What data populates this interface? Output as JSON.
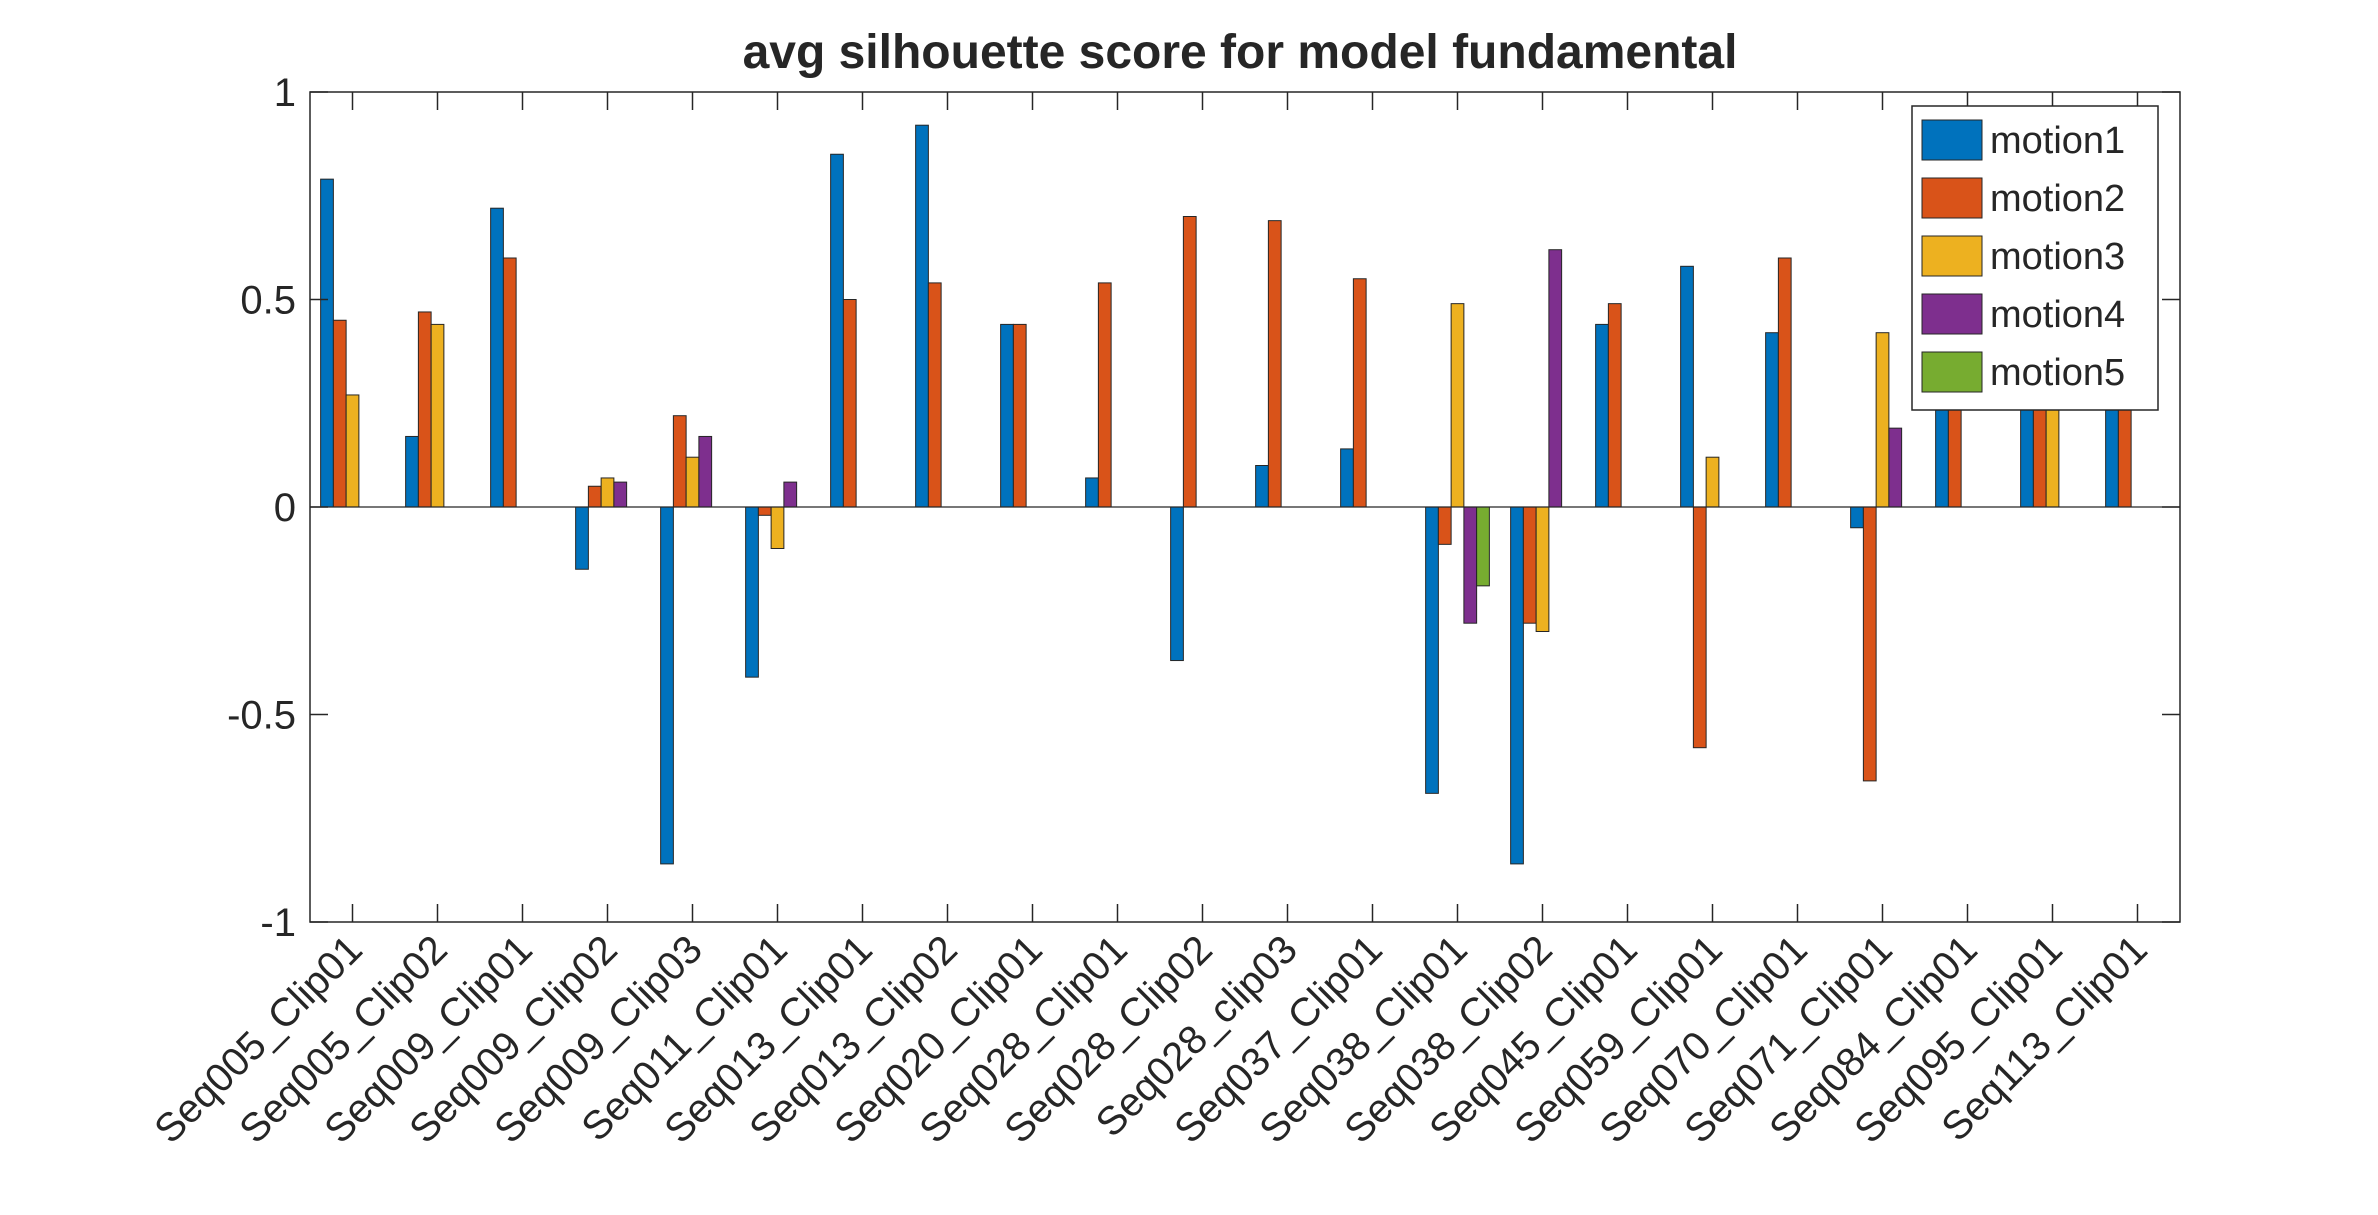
{
  "chart_data": {
    "type": "bar",
    "title": "avg silhouette score for model fundamental",
    "xlabel": "",
    "ylabel": "",
    "ylim": [
      -1,
      1
    ],
    "yticks": [
      "-1",
      "-0.5",
      "0",
      "0.5",
      "1"
    ],
    "grid": false,
    "legend_position": "top-right",
    "categories": [
      "Seq005_Clip01",
      "Seq005_Clip02",
      "Seq009_Clip01",
      "Seq009_Clip02",
      "Seq009_Clip03",
      "Seq011_Clip01",
      "Seq013_Clip01",
      "Seq013_Clip02",
      "Seq020_Clip01",
      "Seq028_Clip01",
      "Seq028_Clip02",
      "Seq028_clip03",
      "Seq037_Clip01",
      "Seq038_Clip01",
      "Seq038_Clip02",
      "Seq045_Clip01",
      "Seq059_Clip01",
      "Seq070_Clip01",
      "Seq071_Clip01",
      "Seq084_Clip01",
      "Seq095_Clip01",
      "Seq113_Clip01"
    ],
    "series": [
      {
        "name": "motion1",
        "color": "#0072BD",
        "values": [
          0.79,
          0.17,
          0.72,
          -0.15,
          -0.86,
          -0.41,
          0.85,
          0.92,
          0.44,
          0.07,
          -0.37,
          0.1,
          0.14,
          -0.69,
          -0.86,
          0.44,
          0.58,
          0.42,
          -0.05,
          0.3,
          0.3,
          0.3
        ]
      },
      {
        "name": "motion2",
        "color": "#D95319",
        "values": [
          0.45,
          0.47,
          0.6,
          0.05,
          0.22,
          -0.02,
          0.5,
          0.54,
          0.44,
          0.54,
          0.7,
          0.69,
          0.55,
          -0.09,
          -0.28,
          0.49,
          -0.58,
          0.6,
          -0.66,
          0.3,
          0.3,
          0.3
        ]
      },
      {
        "name": "motion3",
        "color": "#EDB120",
        "values": [
          0.27,
          0.44,
          0,
          0.07,
          0.12,
          -0.1,
          0,
          0,
          0,
          0,
          0,
          0,
          0,
          0.49,
          -0.3,
          0,
          0.12,
          0,
          0.42,
          0,
          0.3,
          0
        ]
      },
      {
        "name": "motion4",
        "color": "#7E2F8E",
        "values": [
          0,
          0,
          0,
          0.06,
          0.17,
          0.06,
          0,
          0,
          0,
          0,
          0,
          0,
          0,
          -0.28,
          0.62,
          0,
          0,
          0,
          0.19,
          0,
          0,
          0
        ]
      },
      {
        "name": "motion5",
        "color": "#77AC30",
        "values": [
          0,
          0,
          0,
          0,
          0,
          0,
          0,
          0,
          0,
          0,
          0,
          0,
          0,
          -0.19,
          0,
          0,
          0,
          0,
          0,
          0,
          0,
          0
        ]
      }
    ]
  }
}
